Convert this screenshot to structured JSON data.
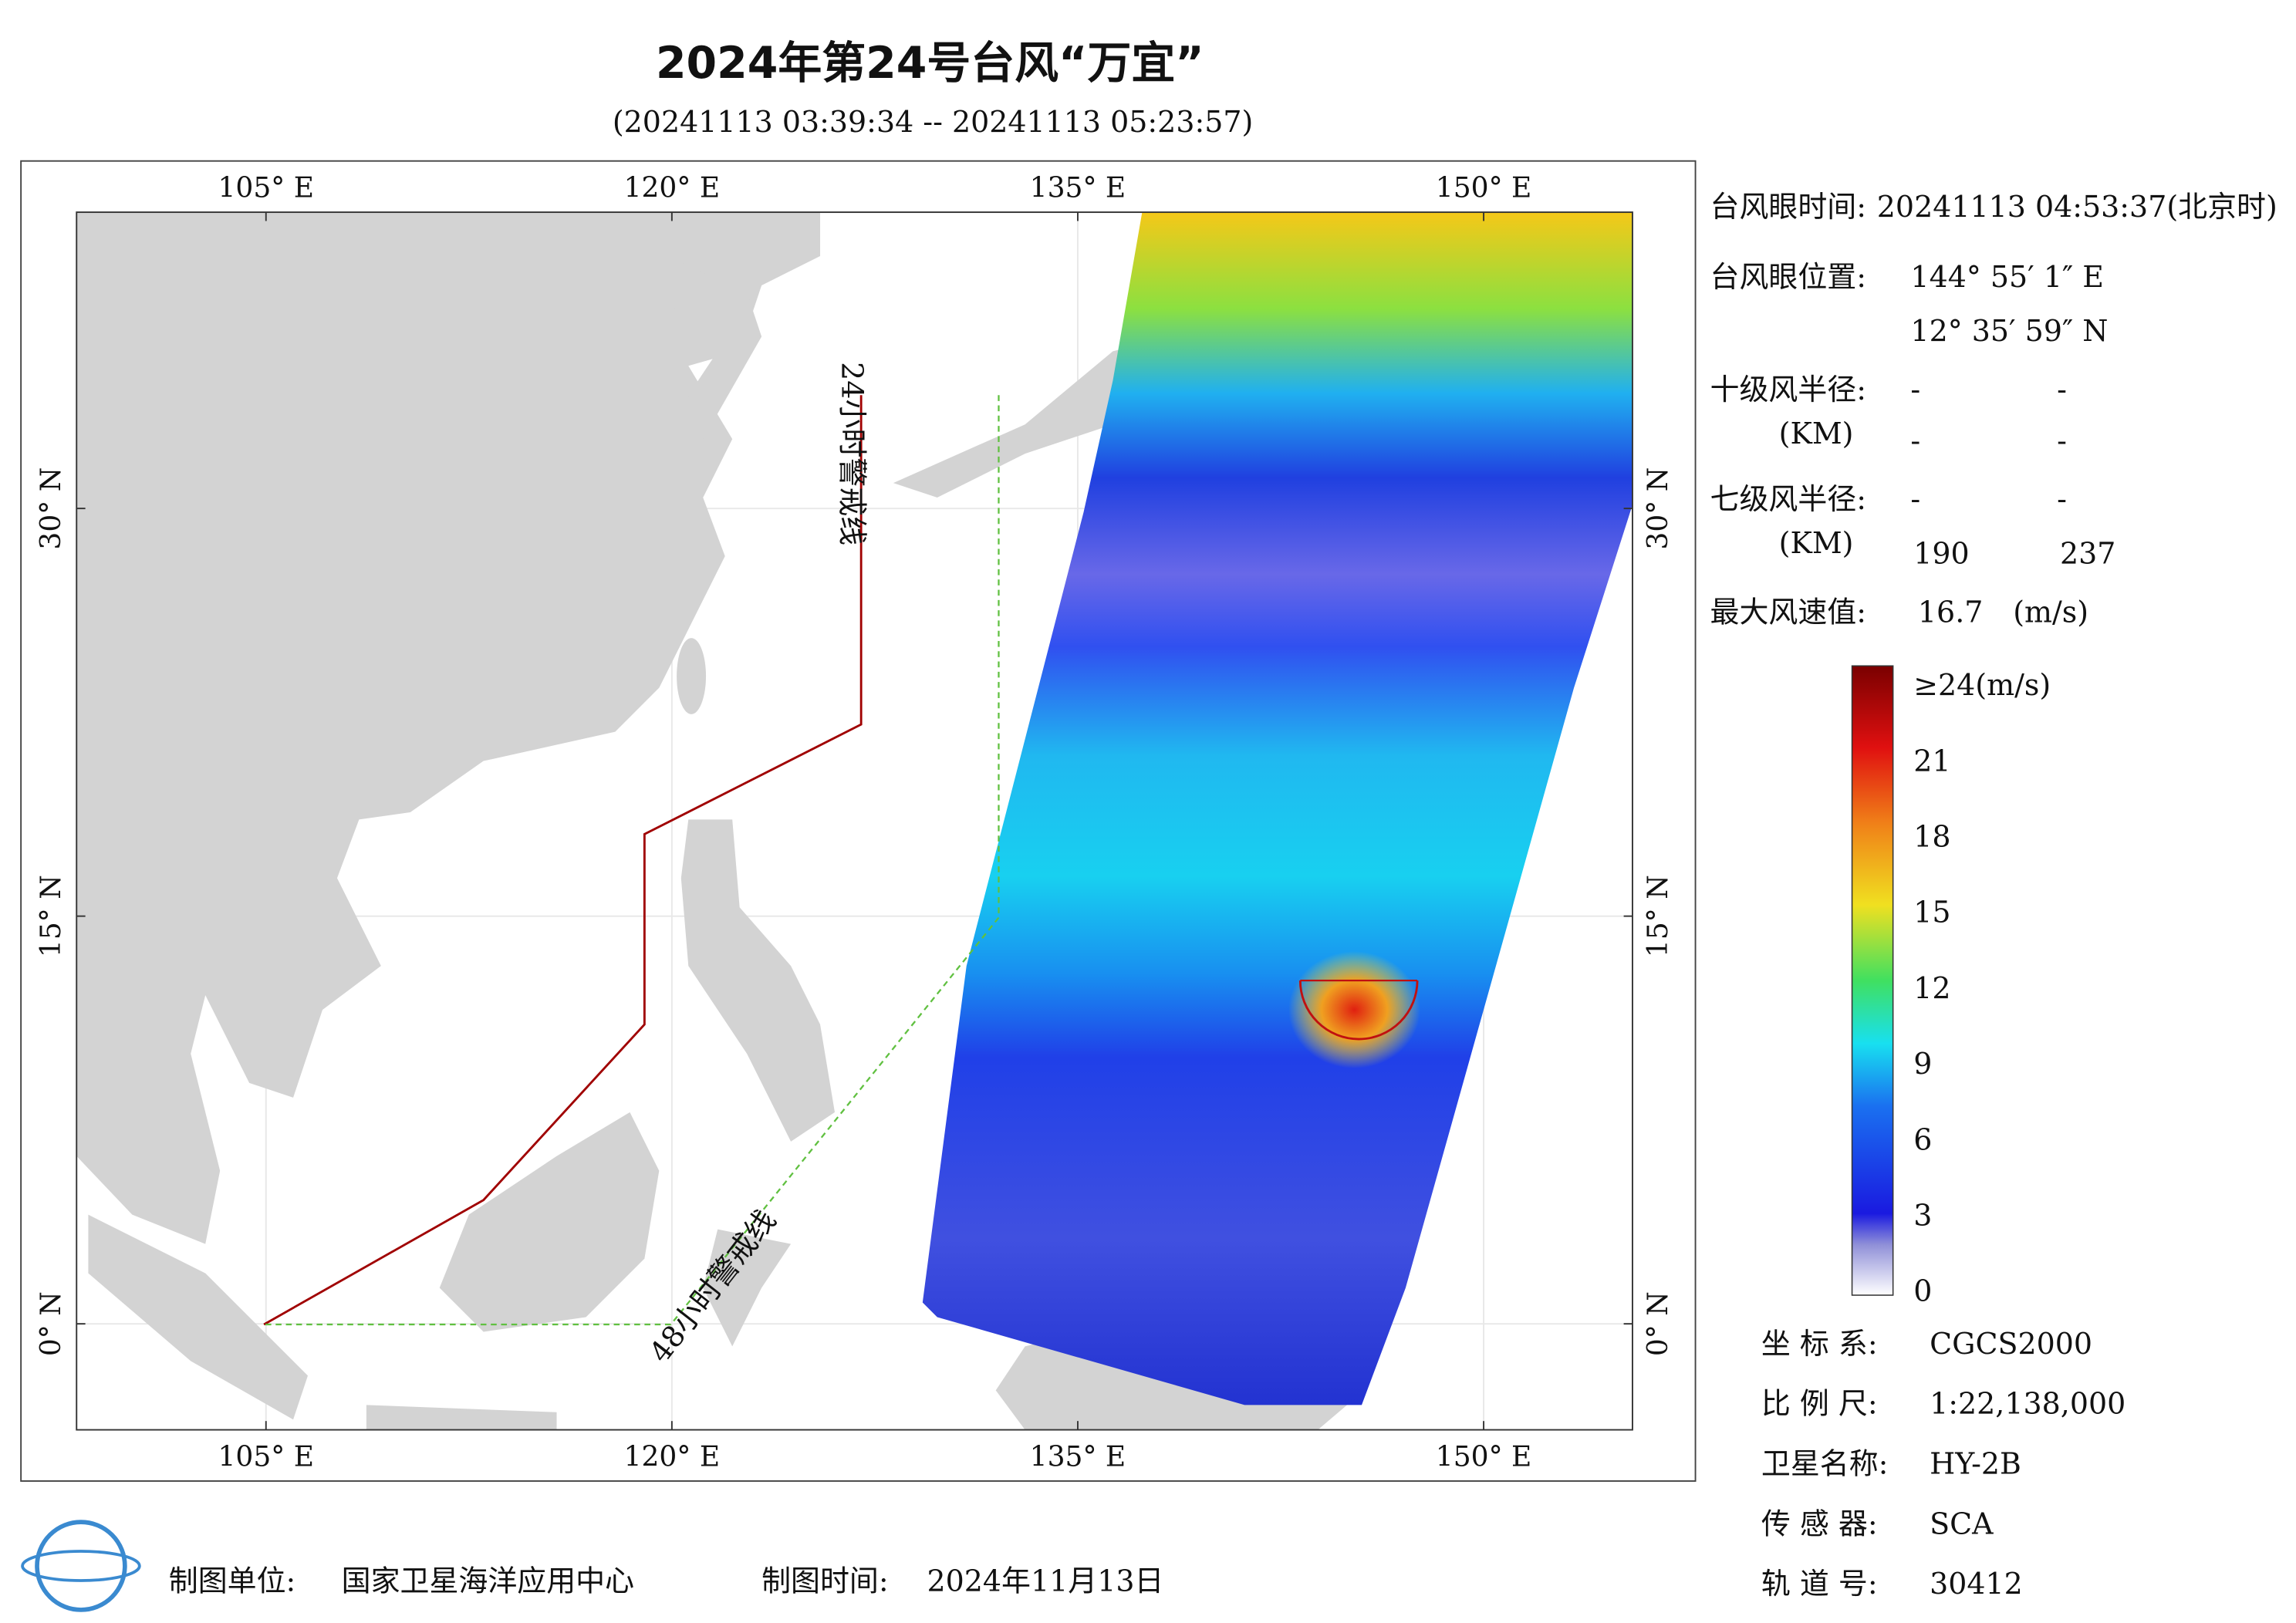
{
  "header": {
    "title": "2024年第24号台风“万宜”",
    "subtitle": "(20241113 03:39:34 -- 20241113 05:23:57)"
  },
  "map": {
    "xlim": [
      98,
      155.5
    ],
    "ylim": [
      -3.9,
      40.9
    ],
    "xticks": [
      {
        "value": 105,
        "label": "105° E"
      },
      {
        "value": 120,
        "label": "120° E"
      },
      {
        "value": 135,
        "label": "135° E"
      },
      {
        "value": 150,
        "label": "150° E"
      }
    ],
    "yticks": [
      {
        "value": 0,
        "label": "0° N"
      },
      {
        "value": 15,
        "label": "15° N"
      },
      {
        "value": 30,
        "label": "30° N"
      }
    ],
    "warning_24": "24小时警戒线",
    "warning_48": "48小时警戒线"
  },
  "info": {
    "eye_time_label": "台风眼时间:",
    "eye_time": "20241113 04:53:37(北京时)",
    "eye_pos_label": "台风眼位置:",
    "eye_lon": "144° 55′ 1″ E",
    "eye_lat": "12° 35′ 59″ N",
    "r10_label": "十级风半径:",
    "r10_unit": "(KM)",
    "r10": [
      "-",
      "-",
      "-",
      "-"
    ],
    "r7_label": "七级风半径:",
    "r7_unit": "(KM)",
    "r7": [
      "-",
      "-",
      "190",
      "237"
    ],
    "max_wind_label": "最大风速值:",
    "max_wind": 16.7,
    "max_wind_unit": "(m/s)"
  },
  "colorbar": {
    "lim": [
      0,
      24
    ],
    "ticks": [
      0,
      3,
      6,
      9,
      12,
      15,
      18,
      21,
      {
        "value": 24,
        "label": "≥24(m/s)"
      }
    ]
  },
  "meta": [
    [
      "坐 标 系:",
      "CGCS2000"
    ],
    [
      "比 例 尺:",
      "1:22,138,000"
    ],
    [
      "卫星名称:",
      "HY-2B"
    ],
    [
      "传 感 器:",
      "SCA"
    ],
    [
      "轨 道 号:",
      "30412"
    ]
  ],
  "footer": {
    "unit_label": "制图单位:",
    "unit": "国家卫星海洋应用中心",
    "time_label": "制图时间:",
    "time": "2024年11月13日"
  }
}
